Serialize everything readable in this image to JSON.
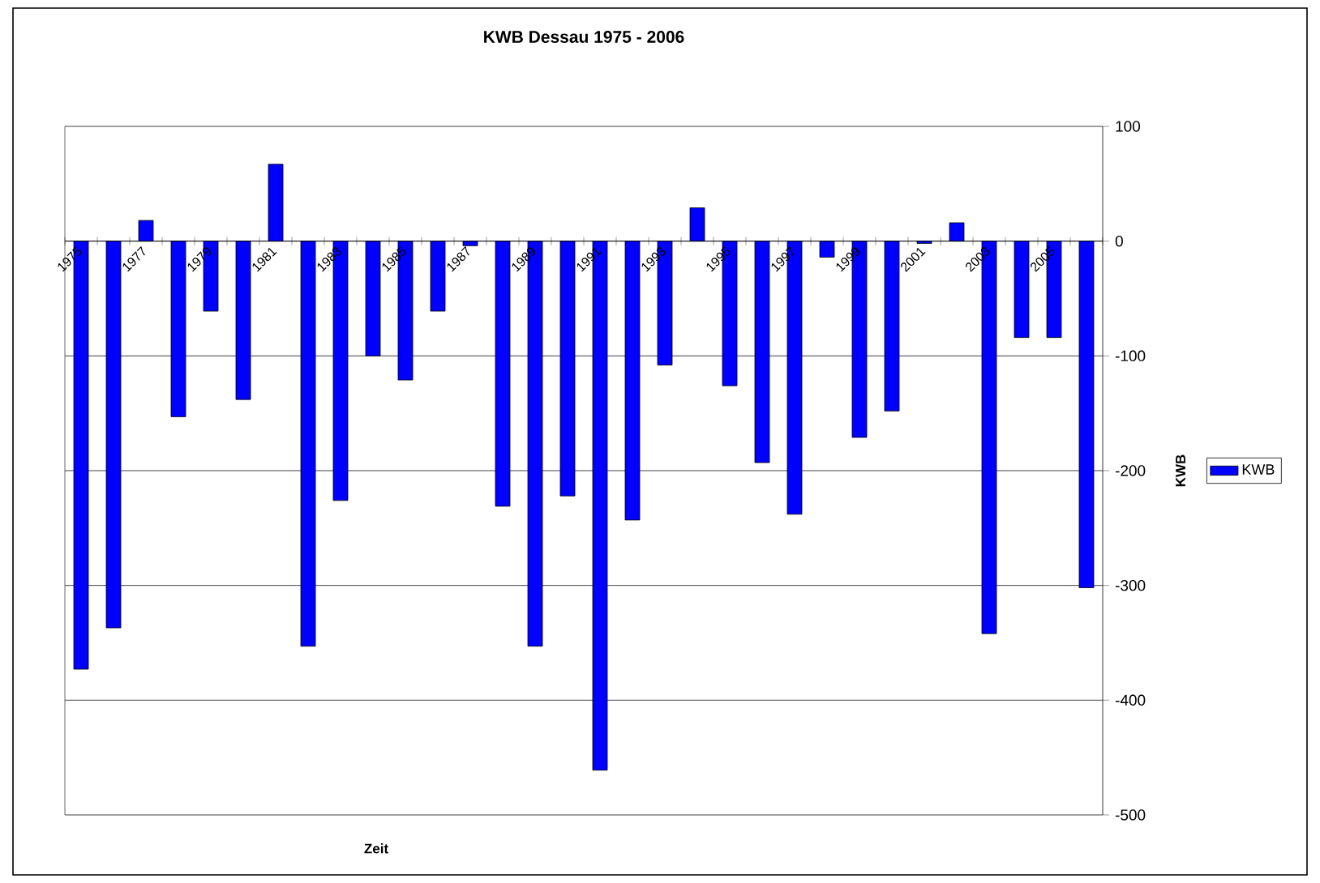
{
  "chart_data": {
    "type": "bar",
    "title": "KWB Dessau 1975 - 2006",
    "xlabel": "Zeit",
    "ylabel": "KWB",
    "categories": [
      "1975",
      null,
      "1977",
      null,
      "1979",
      null,
      "1981",
      null,
      "1983",
      null,
      "1985",
      null,
      "1987",
      null,
      "1989",
      null,
      "1991",
      null,
      "1993",
      null,
      "1995",
      null,
      "1997",
      null,
      "1999",
      null,
      "2001",
      null,
      "2003",
      null,
      "2005",
      null
    ],
    "series": [
      {
        "name": "KWB",
        "color": "#0000ff",
        "values": [
          -373,
          -337,
          18,
          -153,
          -61,
          -138,
          67,
          -353,
          -226,
          -100,
          -121,
          -61,
          -4,
          -231,
          -353,
          -222,
          -461,
          -243,
          -108,
          29,
          -126,
          -193,
          -238,
          -14,
          -171,
          -148,
          -2,
          16,
          -342,
          -84,
          -84,
          -302
        ]
      }
    ],
    "ylim": [
      -500,
      100
    ],
    "yticks": [
      -500,
      -400,
      -300,
      -200,
      -100,
      0,
      100
    ],
    "grid": "y",
    "legend": "right"
  }
}
